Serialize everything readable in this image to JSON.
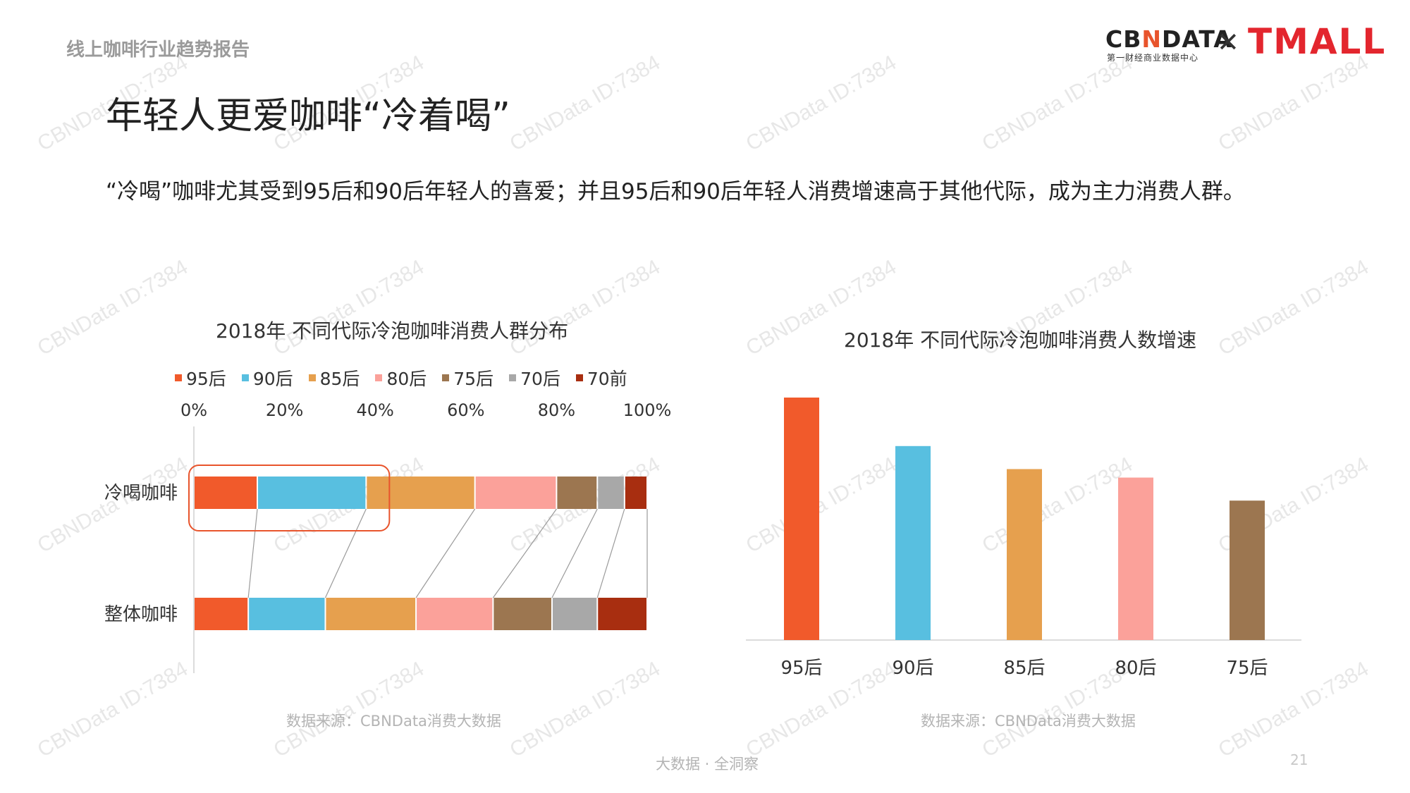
{
  "header": {
    "section_label": "线上咖啡行业趋势报告",
    "logo_cbn_a": "CB",
    "logo_cbn_n": "N",
    "logo_cbn_b": "DATA",
    "logo_cbn_sub": "第一财经商业数据中心",
    "logo_x": "✕",
    "logo_tmall": "TMALL"
  },
  "title": "年轻人更爱咖啡“冷着喝”",
  "description": "“冷喝”咖啡尤其受到95后和90后年轻人的喜爱；并且95后和90后年轻人消费增速高于其他代际，成为主力消费人群。",
  "chart_data": [
    {
      "type": "bar",
      "orientation": "horizontal-stacked-100",
      "title": "2018年 不同代际冷泡咖啡消费人群分布",
      "xlabel": "",
      "ylabel": "",
      "xlim": [
        0,
        100
      ],
      "xticks": [
        "0%",
        "20%",
        "40%",
        "60%",
        "80%",
        "100%"
      ],
      "categories": [
        "冷喝咖啡",
        "整体咖啡"
      ],
      "series": [
        {
          "name": "95后",
          "color": "#f15a2b",
          "values": [
            14,
            12
          ]
        },
        {
          "name": "90后",
          "color": "#58bfe0",
          "values": [
            24,
            17
          ]
        },
        {
          "name": "85后",
          "color": "#e6a04e",
          "values": [
            24,
            20
          ]
        },
        {
          "name": "80后",
          "color": "#fba19a",
          "values": [
            18,
            17
          ]
        },
        {
          "name": "75后",
          "color": "#9c7650",
          "values": [
            9,
            13
          ]
        },
        {
          "name": "70后",
          "color": "#a8a8a8",
          "values": [
            6,
            10
          ]
        },
        {
          "name": "70前",
          "color": "#a82e10",
          "values": [
            5,
            11
          ]
        }
      ],
      "highlight_color": "#e8542c",
      "legend": "top",
      "grid": false,
      "source": "数据来源：CBNData消费大数据"
    },
    {
      "type": "bar",
      "title": "2018年 不同代际冷泡咖啡消费人数增速",
      "xlabel": "",
      "ylabel": "",
      "categories": [
        "95后",
        "90后",
        "85后",
        "80后",
        "75后"
      ],
      "values": [
        100,
        80,
        70.5,
        67,
        57.5
      ],
      "colors": [
        "#f15a2b",
        "#58bfe0",
        "#e6a04e",
        "#fba19a",
        "#9c7650"
      ],
      "ylim": [
        0,
        100
      ],
      "value_scale": "relative, axis not labeled",
      "grid": false,
      "source": "数据来源：CBNData消费大数据"
    }
  ],
  "footer": {
    "tagline": "大数据 · 全洞察",
    "page_number": "21"
  },
  "watermark_text": "CBNData ID:7384"
}
